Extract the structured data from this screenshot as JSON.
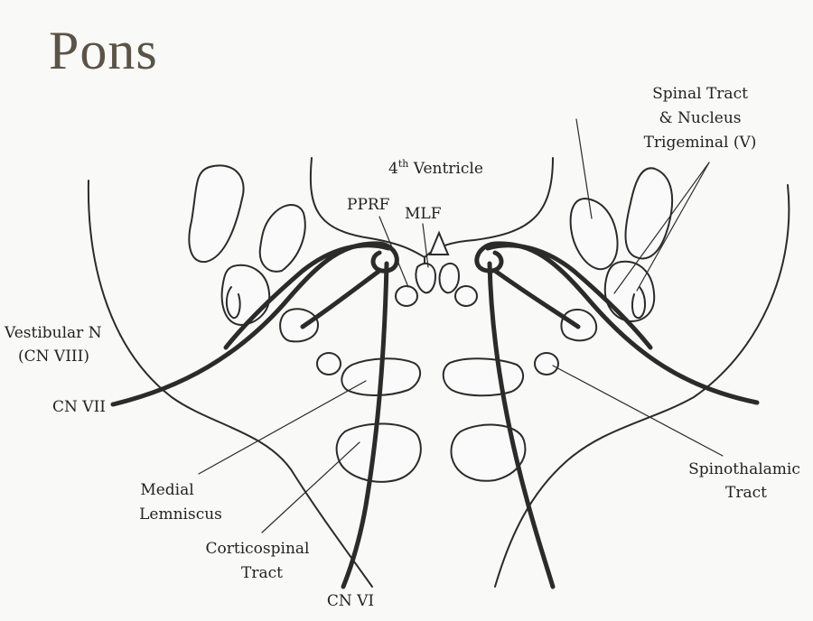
{
  "title": "Pons",
  "labels": {
    "spinal_tract": [
      "Spinal Tract",
      "& Nucleus",
      "Trigeminal (V)"
    ],
    "ventricle_base": "4",
    "ventricle_sup": "th",
    "ventricle_rest": " Ventricle",
    "pprf": "PPRF",
    "mlf": "MLF",
    "vestibular": [
      "Vestibular N",
      "(CN VIII)"
    ],
    "cn7": "CN VII",
    "medial_lemniscus": [
      "Medial",
      "Lemniscus"
    ],
    "corticospinal": [
      "Corticospinal",
      "Tract"
    ],
    "cn6": "CN VI",
    "spinothalamic": [
      "Spinothalamic",
      "Tract"
    ]
  }
}
